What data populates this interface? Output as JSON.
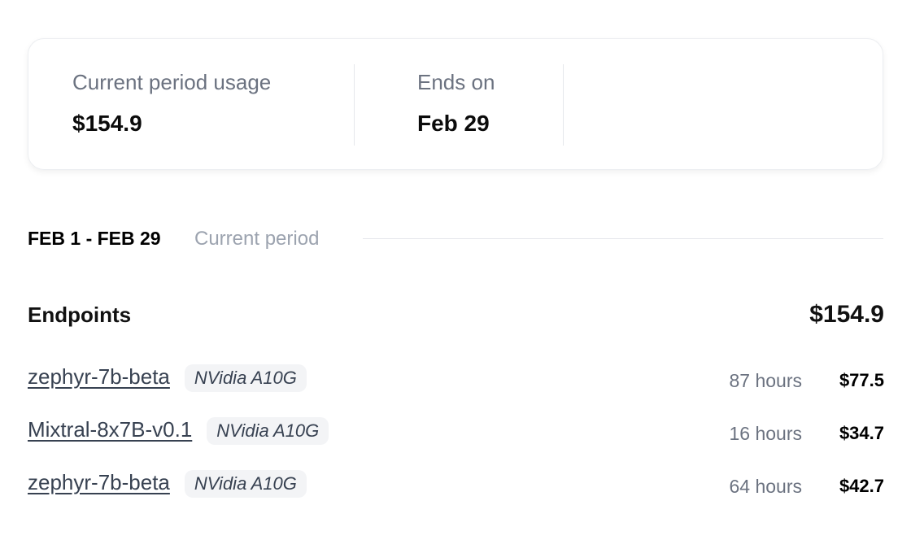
{
  "summary": {
    "usage_label": "Current period usage",
    "usage_value": "$154.9",
    "ends_label": "Ends on",
    "ends_value": "Feb 29"
  },
  "period": {
    "range": "FEB 1 - FEB 29",
    "label": "Current period"
  },
  "endpoints": {
    "title": "Endpoints",
    "total": "$154.9",
    "rows": [
      {
        "name": "zephyr-7b-beta",
        "hardware": "NVidia A10G",
        "hours": "87 hours",
        "cost": "$77.5"
      },
      {
        "name": "Mixtral-8x7B-v0.1",
        "hardware": "NVidia A10G",
        "hours": "16 hours",
        "cost": "$34.7"
      },
      {
        "name": "zephyr-7b-beta",
        "hardware": "NVidia A10G",
        "hours": "64 hours",
        "cost": "$42.7"
      }
    ]
  }
}
